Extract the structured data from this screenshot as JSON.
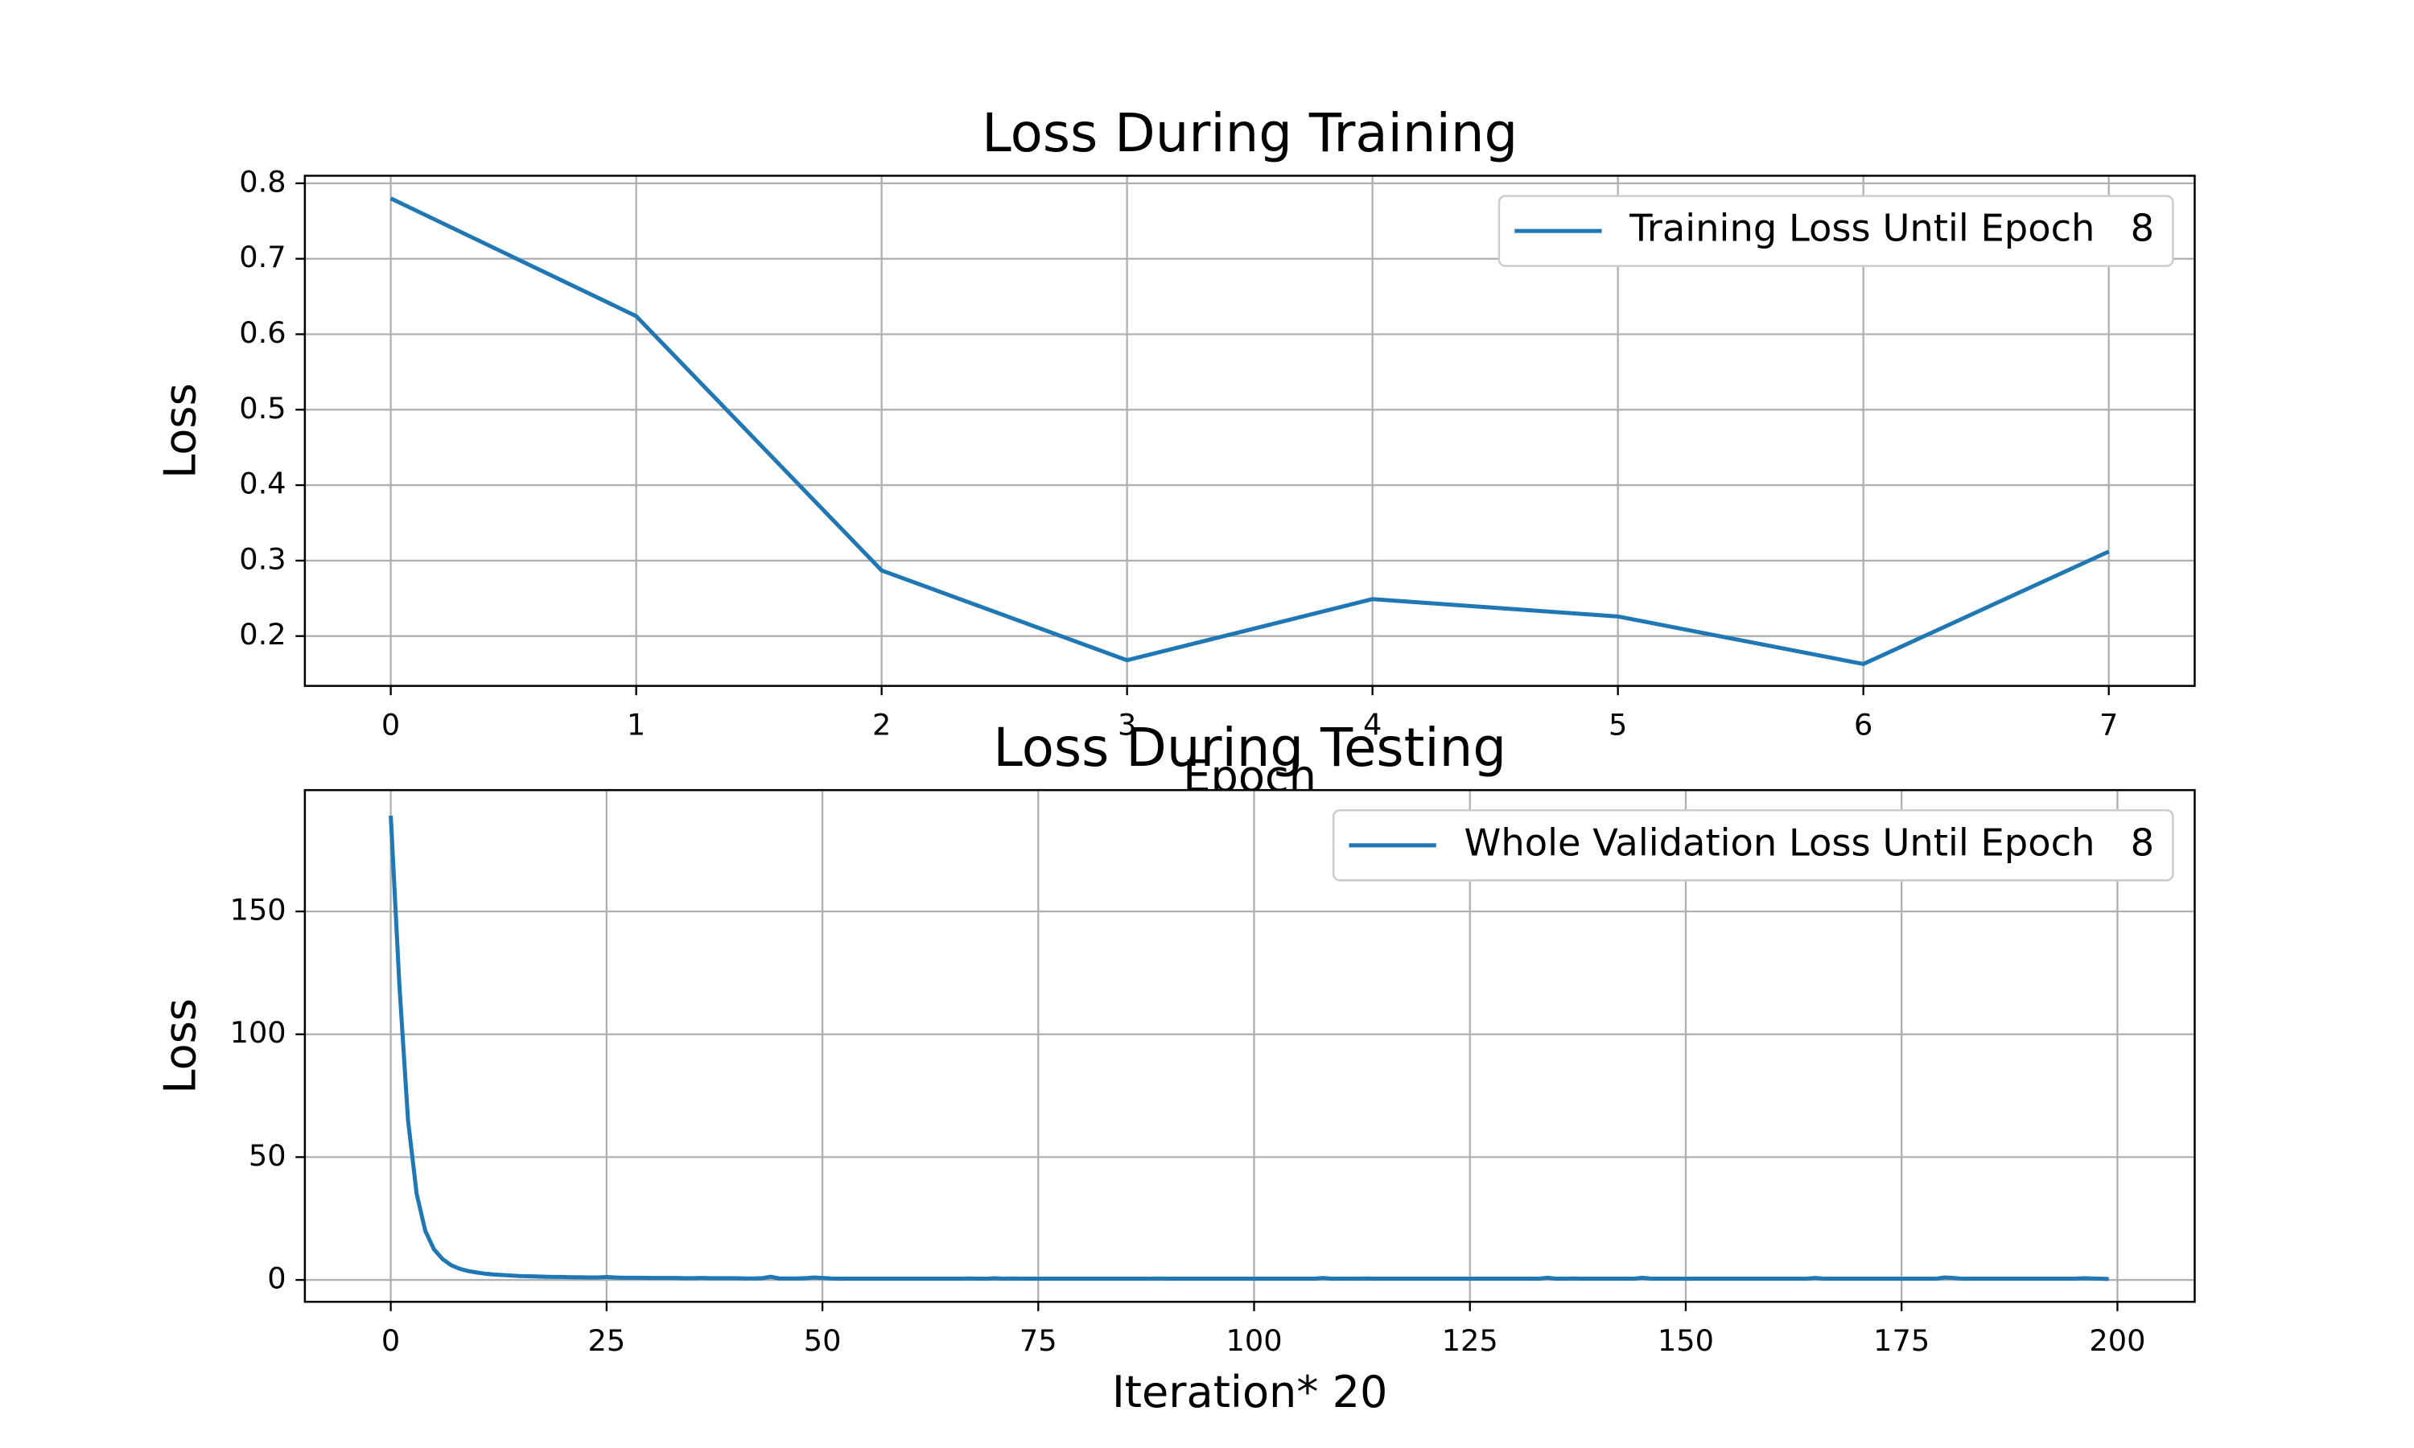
{
  "chart_data": [
    {
      "type": "line",
      "title": "Loss During Training",
      "xlabel": "Epoch",
      "ylabel": "Loss",
      "x": [
        0,
        1,
        2,
        3,
        4,
        5,
        6,
        7
      ],
      "series": [
        {
          "name": "Training Loss Until Epoch   8",
          "color": "#1f77b4",
          "values": [
            0.78,
            0.624,
            0.287,
            0.168,
            0.249,
            0.226,
            0.163,
            0.312
          ]
        }
      ],
      "xlim": [
        -0.35,
        7.35
      ],
      "xticks": [
        0,
        1,
        2,
        3,
        4,
        5,
        6,
        7
      ],
      "ylim": [
        0.134,
        0.81
      ],
      "yticks": [
        0.2,
        0.3,
        0.4,
        0.5,
        0.6,
        0.7,
        0.8
      ],
      "grid": true,
      "legend": "upper right"
    },
    {
      "type": "line",
      "title": "Loss During Testing",
      "xlabel": "Iteration*   20",
      "ylabel": "Loss",
      "x": [
        0,
        1,
        2,
        3,
        4,
        5,
        6,
        7,
        8,
        9,
        10,
        11,
        12,
        13,
        14,
        15,
        16,
        17,
        18,
        19,
        20,
        21,
        22,
        23,
        24,
        25,
        26,
        27,
        28,
        29,
        30,
        31,
        32,
        33,
        34,
        35,
        36,
        37,
        38,
        39,
        40,
        41,
        42,
        43,
        44,
        45,
        46,
        47,
        48,
        49,
        50,
        51,
        52,
        53,
        54,
        55,
        56,
        57,
        58,
        59,
        60,
        61,
        62,
        63,
        64,
        65,
        66,
        67,
        68,
        69,
        70,
        71,
        72,
        73,
        74,
        75,
        76,
        77,
        78,
        79,
        80,
        81,
        82,
        83,
        84,
        85,
        86,
        87,
        88,
        89,
        90,
        91,
        92,
        93,
        94,
        95,
        96,
        97,
        98,
        99,
        100,
        101,
        102,
        103,
        104,
        105,
        106,
        107,
        108,
        109,
        110,
        111,
        112,
        113,
        114,
        115,
        116,
        117,
        118,
        119,
        120,
        121,
        122,
        123,
        124,
        125,
        126,
        127,
        128,
        129,
        130,
        131,
        132,
        133,
        134,
        135,
        136,
        137,
        138,
        139,
        140,
        141,
        142,
        143,
        144,
        145,
        146,
        147,
        148,
        149,
        150,
        151,
        152,
        153,
        154,
        155,
        156,
        157,
        158,
        159,
        160,
        161,
        162,
        163,
        164,
        165,
        166,
        167,
        168,
        169,
        170,
        171,
        172,
        173,
        174,
        175,
        176,
        177,
        178,
        179,
        180,
        181,
        182,
        183,
        184,
        185,
        186,
        187,
        188,
        189,
        190,
        191,
        192,
        193,
        194,
        195,
        196,
        197,
        198,
        199
      ],
      "series": [
        {
          "name": "Whole Validation Loss Until Epoch   8",
          "color": "#1f77b4",
          "values": [
            189,
            120,
            65,
            35,
            20,
            12.5,
            8.5,
            6,
            4.5,
            3.6,
            3,
            2.5,
            2.2,
            2,
            1.8,
            1.6,
            1.5,
            1.4,
            1.3,
            1.2,
            1.2,
            1.1,
            1.1,
            1,
            1,
            1.2,
            1,
            0.9,
            0.9,
            0.9,
            0.8,
            0.8,
            0.8,
            0.8,
            0.7,
            0.7,
            0.8,
            0.7,
            0.7,
            0.7,
            0.7,
            0.6,
            0.6,
            0.7,
            1.3,
            0.6,
            0.6,
            0.6,
            0.7,
            1,
            0.8,
            0.6,
            0.5,
            0.5,
            0.5,
            0.5,
            0.5,
            0.5,
            0.5,
            0.5,
            0.5,
            0.5,
            0.5,
            0.5,
            0.5,
            0.5,
            0.5,
            0.6,
            0.5,
            0.5,
            0.7,
            0.5,
            0.6,
            0.5,
            0.5,
            0.5,
            0.5,
            0.5,
            0.5,
            0.5,
            0.5,
            0.5,
            0.5,
            0.5,
            0.5,
            0.5,
            0.5,
            0.5,
            0.5,
            0.6,
            0.5,
            0.5,
            0.5,
            0.5,
            0.5,
            0.5,
            0.5,
            0.5,
            0.5,
            0.5,
            0.5,
            0.5,
            0.5,
            0.5,
            0.5,
            0.5,
            0.5,
            0.5,
            0.8,
            0.5,
            0.5,
            0.5,
            0.5,
            0.6,
            0.5,
            0.5,
            0.5,
            0.5,
            0.5,
            0.5,
            0.5,
            0.5,
            0.5,
            0.5,
            0.5,
            0.5,
            0.5,
            0.5,
            0.5,
            0.5,
            0.5,
            0.5,
            0.5,
            0.5,
            0.9,
            0.5,
            0.5,
            0.6,
            0.5,
            0.5,
            0.5,
            0.5,
            0.5,
            0.5,
            0.5,
            0.9,
            0.5,
            0.5,
            0.5,
            0.5,
            0.5,
            0.5,
            0.5,
            0.5,
            0.5,
            0.5,
            0.5,
            0.5,
            0.5,
            0.5,
            0.5,
            0.5,
            0.5,
            0.5,
            0.5,
            0.8,
            0.5,
            0.5,
            0.5,
            0.5,
            0.5,
            0.5,
            0.5,
            0.5,
            0.5,
            0.5,
            0.5,
            0.5,
            0.5,
            0.5,
            1,
            0.8,
            0.5,
            0.5,
            0.5,
            0.5,
            0.5,
            0.5,
            0.5,
            0.5,
            0.5,
            0.5,
            0.5,
            0.5,
            0.5,
            0.5,
            0.7,
            0.6,
            0.5,
            0.4
          ]
        }
      ],
      "xlim": [
        -9.95,
        208.95
      ],
      "xticks": [
        0,
        25,
        50,
        75,
        100,
        125,
        150,
        175,
        200
      ],
      "ylim": [
        -8.9,
        199.4
      ],
      "yticks": [
        0,
        50,
        100,
        150
      ],
      "grid": true,
      "legend": "upper right"
    }
  ]
}
